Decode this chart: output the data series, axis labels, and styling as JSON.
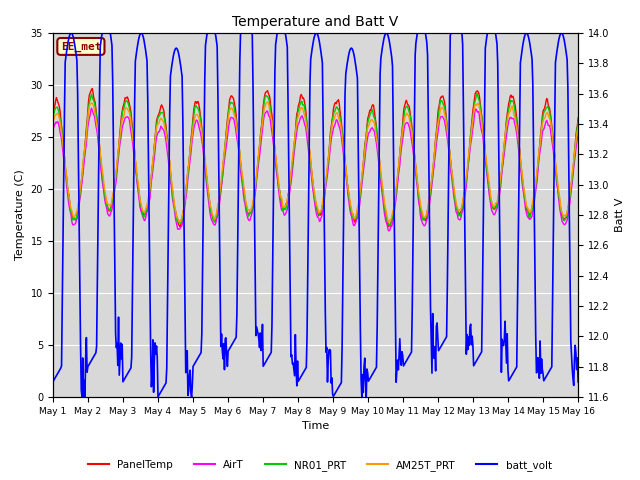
{
  "title": "Temperature and Batt V",
  "xlabel": "Time",
  "ylabel_left": "Temperature (C)",
  "ylabel_right": "Batt V",
  "ylim_left": [
    0,
    35
  ],
  "ylim_right": [
    11.6,
    14.0
  ],
  "yticks_left": [
    0,
    5,
    10,
    15,
    20,
    25,
    30,
    35
  ],
  "yticks_right": [
    11.6,
    11.8,
    12.0,
    12.2,
    12.4,
    12.6,
    12.8,
    13.0,
    13.2,
    13.4,
    13.6,
    13.8,
    14.0
  ],
  "n_days": 15,
  "annotation_text": "EE_met",
  "annotation_fg": "#8B0000",
  "annotation_bg": "#ffffcc",
  "background_color": "#ffffff",
  "plot_bg_color": "#d8d8d8",
  "grid_color": "#ffffff",
  "colors": {
    "PanelTemp": "#ff0000",
    "AirT": "#ff00ff",
    "NR01_PRT": "#00cc00",
    "AM25T_PRT": "#ff9900",
    "batt_volt": "#0000ff"
  },
  "lw_temp": 1.0,
  "lw_batt": 1.2,
  "n_points_per_day": 48,
  "figsize": [
    6.4,
    4.8
  ],
  "dpi": 100
}
